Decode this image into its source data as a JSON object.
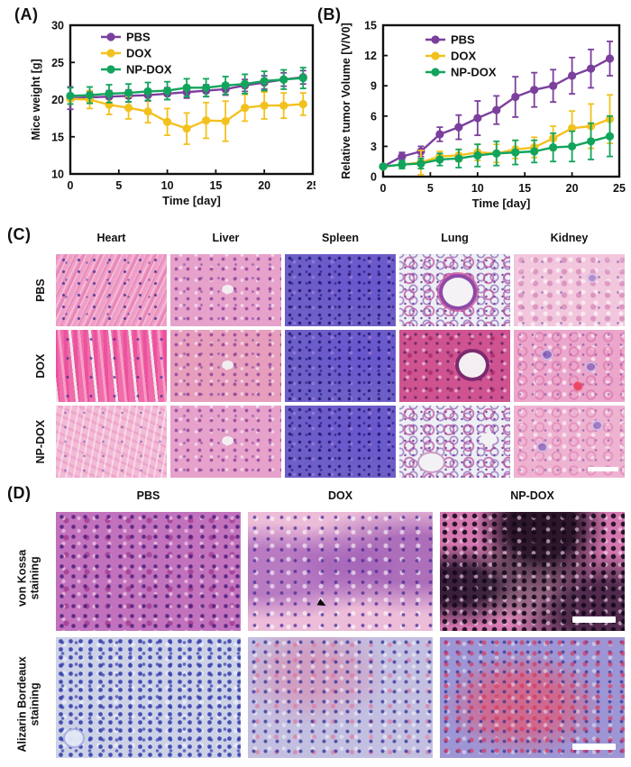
{
  "panels": {
    "a": "(A)",
    "b": "(B)",
    "c": "(C)",
    "d": "(D)"
  },
  "colors": {
    "pbs": "#7B3F9D",
    "dox": "#F3C11D",
    "npdox": "#12A45C",
    "axis": "#111111"
  },
  "chart_data": [
    {
      "type": "line",
      "title": "",
      "xlabel": "Time [day]",
      "ylabel": "Mice weight [g]",
      "xlim": [
        0,
        25
      ],
      "ylim": [
        10,
        30
      ],
      "xticks": [
        0,
        5,
        10,
        15,
        20,
        25
      ],
      "yticks": [
        10,
        15,
        20,
        25,
        30
      ],
      "x": [
        0,
        2,
        4,
        6,
        8,
        10,
        12,
        14,
        16,
        18,
        20,
        22,
        24
      ],
      "legend_position": "top-left-inside",
      "grid": false,
      "series": [
        {
          "name": "PBS",
          "color": "#7B3F9D",
          "values": [
            20.2,
            20.3,
            20.4,
            20.5,
            20.6,
            20.8,
            21.0,
            21.2,
            21.4,
            21.9,
            22.3,
            22.7,
            23.0
          ],
          "errors": [
            1.5,
            0.8,
            0.8,
            0.8,
            0.8,
            0.8,
            0.8,
            0.8,
            0.8,
            0.8,
            0.9,
            0.9,
            0.9
          ]
        },
        {
          "name": "DOX",
          "color": "#F3C11D",
          "values": [
            20.1,
            20.0,
            19.3,
            18.9,
            18.4,
            17.0,
            16.1,
            17.2,
            17.1,
            18.9,
            19.2,
            19.2,
            19.4
          ],
          "errors": [
            0.7,
            1.2,
            1.3,
            1.5,
            1.5,
            1.8,
            2.1,
            2.4,
            2.7,
            1.8,
            1.8,
            1.7,
            1.5
          ]
        },
        {
          "name": "NP-DOX",
          "color": "#12A45C",
          "values": [
            20.5,
            20.6,
            20.8,
            20.9,
            21.1,
            21.2,
            21.6,
            21.6,
            21.9,
            22.1,
            22.5,
            22.7,
            22.9
          ],
          "errors": [
            1.1,
            1.1,
            1.2,
            1.2,
            1.2,
            1.2,
            1.2,
            1.2,
            1.2,
            1.3,
            1.3,
            1.3,
            1.4
          ]
        }
      ]
    },
    {
      "type": "line",
      "title": "",
      "xlabel": "Time [day]",
      "ylabel": "Relative tumor Volume [V/V0]",
      "xlim": [
        0,
        25
      ],
      "ylim": [
        0,
        15
      ],
      "xticks": [
        0,
        5,
        10,
        15,
        20,
        25
      ],
      "yticks": [
        0,
        3,
        6,
        9,
        12,
        15
      ],
      "x": [
        0,
        2,
        4,
        6,
        8,
        10,
        12,
        14,
        16,
        18,
        20,
        22,
        24
      ],
      "legend_position": "top-left-inside",
      "grid": false,
      "series": [
        {
          "name": "PBS",
          "color": "#7B3F9D",
          "values": [
            1.0,
            2.0,
            2.5,
            4.2,
            4.9,
            5.8,
            6.6,
            7.9,
            8.6,
            9.0,
            10.0,
            10.7,
            11.7
          ],
          "errors": [
            0.2,
            0.4,
            0.5,
            0.7,
            1.2,
            1.7,
            1.4,
            2.0,
            1.7,
            1.6,
            1.8,
            1.9,
            1.7
          ]
        },
        {
          "name": "DOX",
          "color": "#F3C11D",
          "values": [
            1.0,
            1.2,
            1.4,
            2.0,
            2.1,
            2.4,
            2.3,
            2.7,
            2.9,
            3.8,
            4.8,
            5.0,
            5.7
          ],
          "errors": [
            0.2,
            0.3,
            1.2,
            0.5,
            0.6,
            0.8,
            0.9,
            0.9,
            1.0,
            1.2,
            1.7,
            2.2,
            2.4
          ]
        },
        {
          "name": "NP-DOX",
          "color": "#12A45C",
          "values": [
            1.0,
            1.2,
            1.3,
            1.7,
            1.8,
            2.1,
            2.3,
            2.4,
            2.5,
            2.9,
            3.0,
            3.5,
            4.0
          ],
          "errors": [
            0.2,
            0.4,
            0.5,
            0.6,
            0.9,
            1.1,
            1.2,
            1.2,
            1.1,
            1.4,
            1.5,
            1.8,
            2.0
          ]
        }
      ]
    }
  ],
  "panel_c": {
    "columns": [
      "Heart",
      "Liver",
      "Spleen",
      "Lung",
      "Kidney"
    ],
    "rows": [
      "PBS",
      "DOX",
      "NP-DOX"
    ]
  },
  "panel_d": {
    "columns": [
      "PBS",
      "DOX",
      "NP-DOX"
    ],
    "rows": [
      {
        "line1": "von Kossa",
        "line2": "staining"
      },
      {
        "line1": "Alizarin Bordeaux",
        "line2": "staining"
      }
    ]
  }
}
